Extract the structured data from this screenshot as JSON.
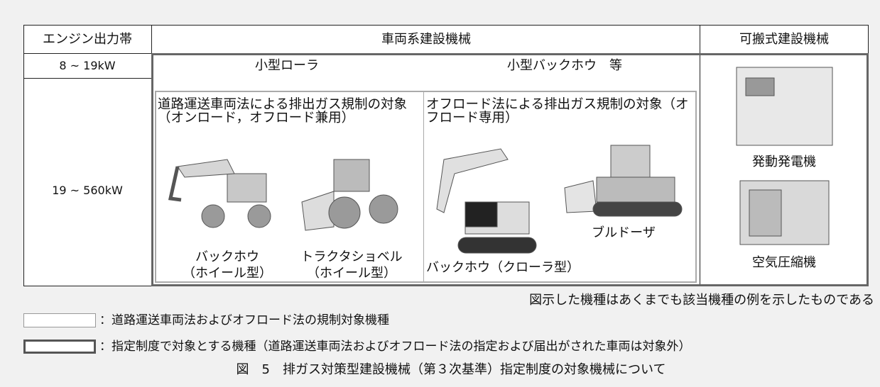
{
  "table": {
    "header": [
      "エンジン出力帯",
      "車両系建設機械",
      "可搬式建設機械"
    ],
    "rows": [
      [
        "8 ~ 19kW",
        "小型ローラ",
        "小型バックホウ　等"
      ],
      [
        "19 ~ 560kW"
      ]
    ]
  },
  "panels": [
    {
      "text": "道路運送車両法による排出ガス規制の対象（オンロード，オフロード兼用）",
      "machines": [
        [
          "バックホウ",
          "（ホイール型）"
        ],
        [
          "トラクタショベル",
          "（ホイール型）"
        ]
      ]
    },
    {
      "text": "オフロード法による排出ガス規制の対象（オフロード専用）",
      "machines": [
        "バックホウ（クローラ型）",
        "ブルドーザ"
      ]
    }
  ],
  "portable": [
    "発動発電機",
    "空気圧縮機"
  ],
  "note": "図示した機種はあくまでも該当機種の例を示したものである",
  "legend": [
    "：道路運送車両法およびオフロード法の規制対象機種",
    "：指定制度で対象とする機種（道路運送車両法およびオフロード法の指定および届出がされた車両は対象外）"
  ],
  "caption": "図　5　排ガス対策型建設機械（第３次基準）指定制度の対象機械について"
}
